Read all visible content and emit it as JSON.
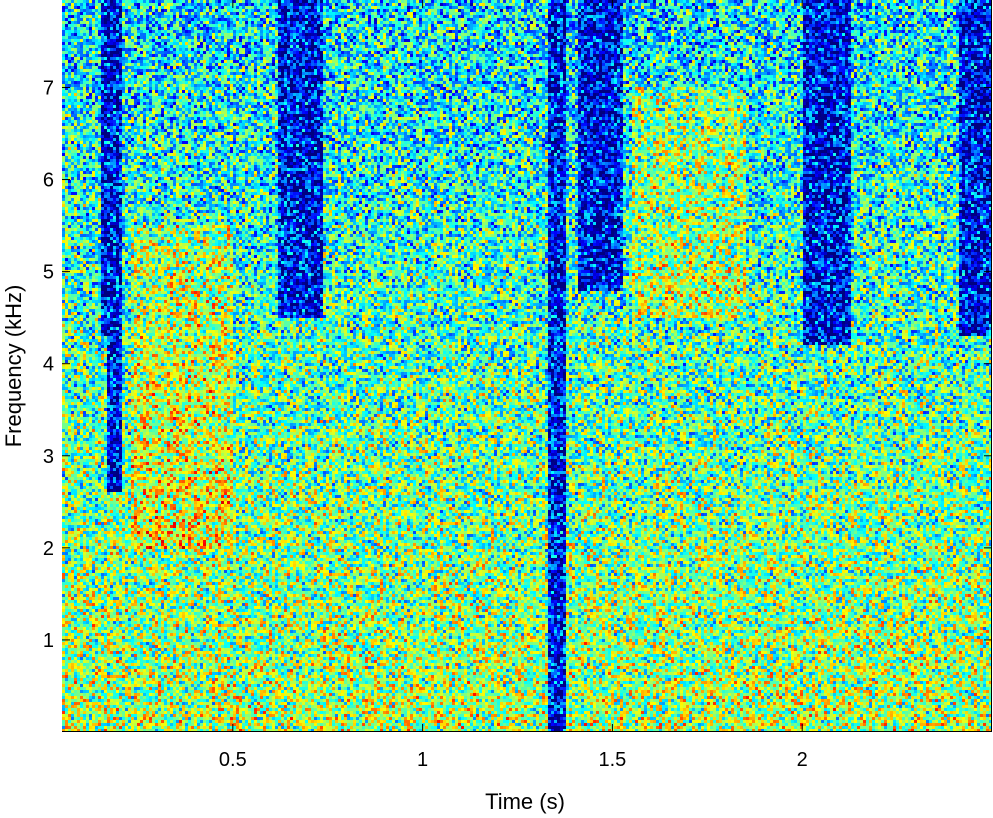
{
  "chart_data": {
    "type": "heatmap",
    "title": "",
    "xlabel": "Time (s)",
    "ylabel": "Frequency (kHz)",
    "xlim": [
      0.05,
      2.5
    ],
    "ylim": [
      0,
      7.95
    ],
    "x_ticks": [
      0.5,
      1,
      1.5,
      2
    ],
    "x_tick_labels": [
      "0.5",
      "1",
      "1.5",
      "2"
    ],
    "y_ticks": [
      1,
      2,
      3,
      4,
      5,
      6,
      7
    ],
    "y_tick_labels": [
      "1",
      "2",
      "3",
      "4",
      "5",
      "6",
      "7"
    ],
    "colormap": "jet",
    "value_range": [
      0,
      1
    ],
    "low_energy_regions": [
      {
        "t_start": 0.15,
        "t_end": 0.21,
        "f_start": 4.3,
        "f_end": 7.95
      },
      {
        "t_start": 0.17,
        "t_end": 0.21,
        "f_start": 2.6,
        "f_end": 4.3
      },
      {
        "t_start": 0.62,
        "t_end": 0.74,
        "f_start": 4.5,
        "f_end": 7.95
      },
      {
        "t_start": 1.33,
        "t_end": 1.38,
        "f_start": 0.0,
        "f_end": 7.95
      },
      {
        "t_start": 1.41,
        "t_end": 1.53,
        "f_start": 4.8,
        "f_end": 7.95
      },
      {
        "t_start": 2.0,
        "t_end": 2.13,
        "f_start": 4.2,
        "f_end": 7.95
      },
      {
        "t_start": 2.41,
        "t_end": 2.5,
        "f_start": 4.3,
        "f_end": 7.95
      }
    ],
    "high_energy_regions": [
      {
        "t_start": 0.23,
        "t_end": 0.5,
        "f_start": 2.0,
        "f_end": 5.5
      },
      {
        "t_start": 1.55,
        "t_end": 1.85,
        "f_start": 4.5,
        "f_end": 7.0
      }
    ]
  }
}
